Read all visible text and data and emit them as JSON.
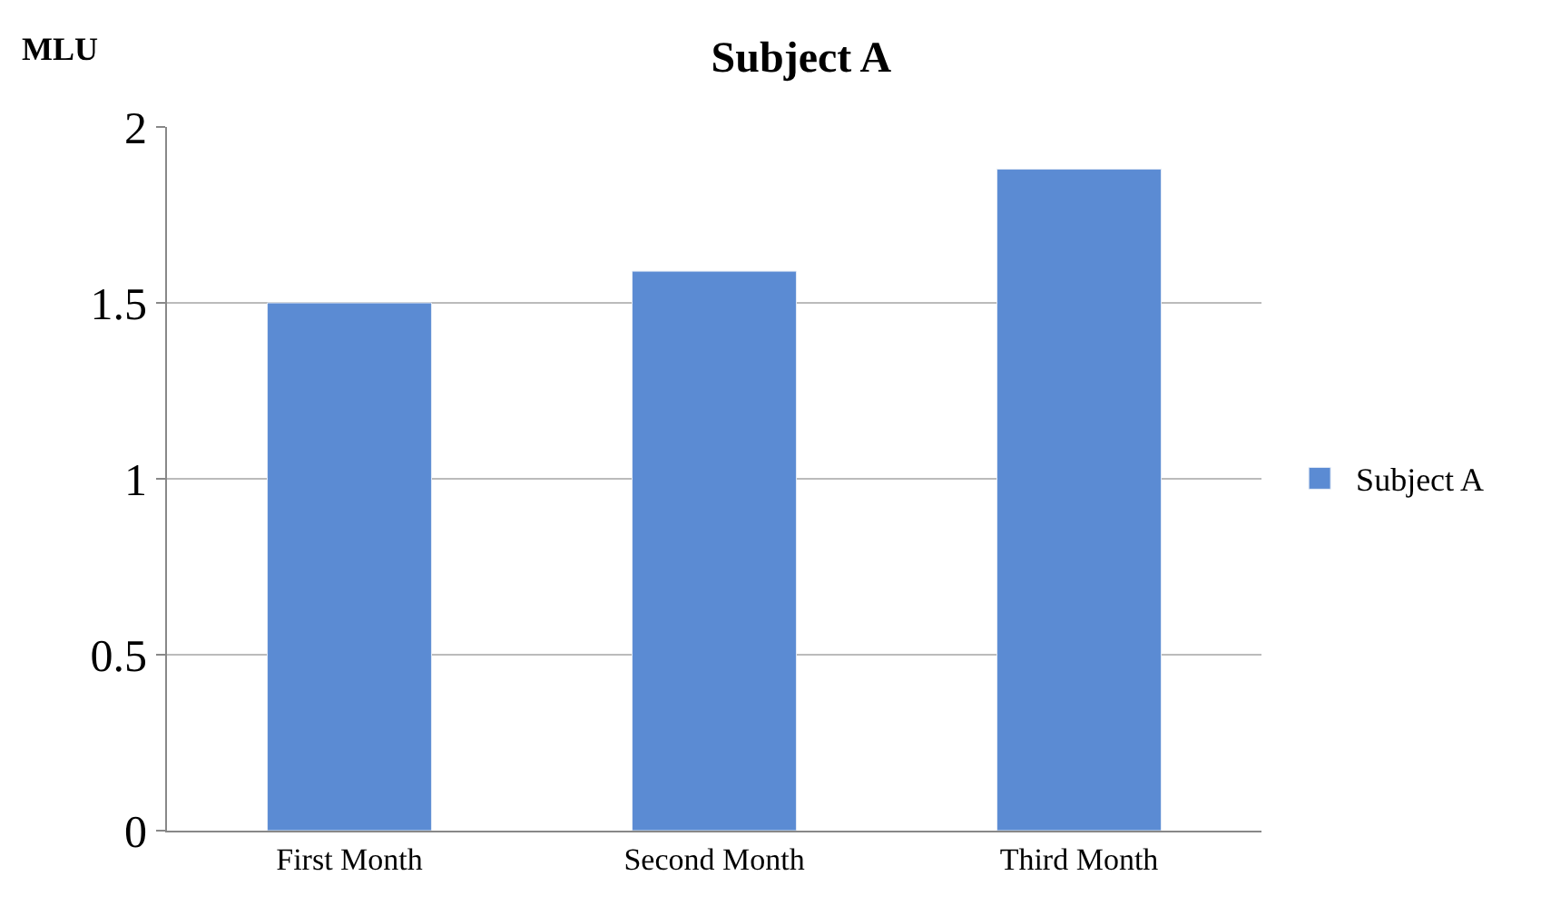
{
  "chart_data": {
    "type": "bar",
    "title": "Subject A",
    "ylabel": "MLU",
    "categories": [
      "First Month",
      "Second Month",
      "Third Month"
    ],
    "series": [
      {
        "name": "Subject A",
        "color": "#5b8bd3",
        "values": [
          1.5,
          1.59,
          1.88
        ]
      }
    ],
    "ylim": [
      0,
      2
    ],
    "yticks": [
      0,
      0.5,
      1,
      1.5,
      2
    ],
    "grid": "y",
    "legend": "right"
  }
}
